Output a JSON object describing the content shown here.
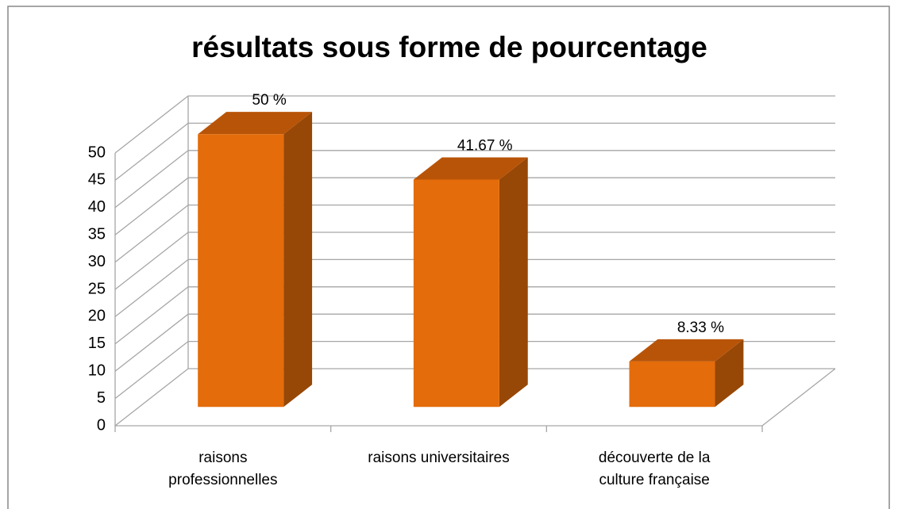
{
  "chart_data": {
    "type": "bar3d",
    "title": "résultats sous forme de pourcentage",
    "categories": [
      "raisons\nprofessionnelles",
      "raisons universitaires",
      "découverte de la\nculture française"
    ],
    "values": [
      50,
      41.67,
      8.33
    ],
    "value_labels": [
      "50 %",
      "41.67 %",
      "8.33 %"
    ],
    "color": "#e46c0a",
    "ylim": [
      0,
      50
    ],
    "yticks": [
      0,
      5,
      10,
      15,
      20,
      25,
      30,
      35,
      40,
      45,
      50
    ],
    "grid": true
  }
}
